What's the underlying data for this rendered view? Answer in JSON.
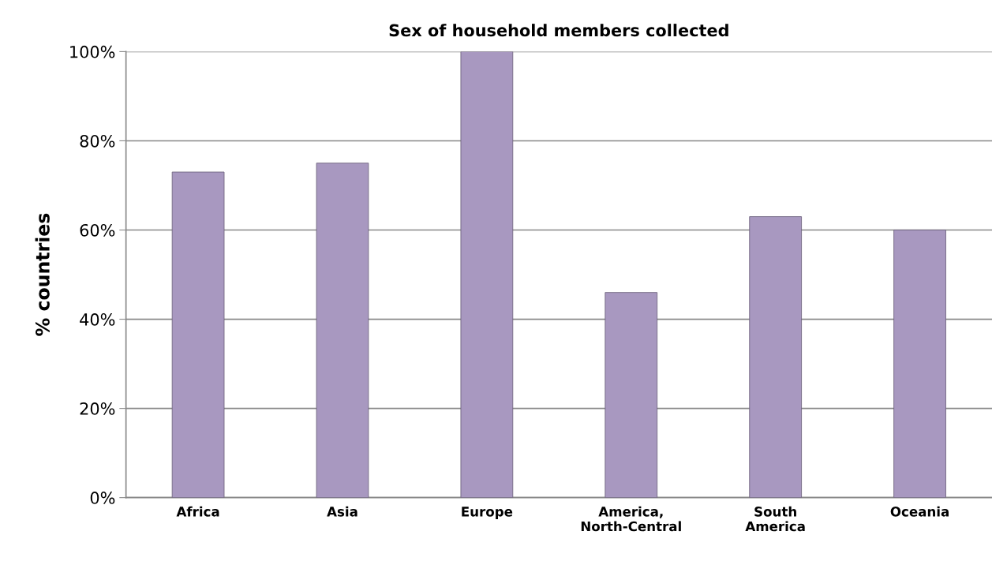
{
  "chart_data": {
    "type": "bar",
    "title": "Sex of household members collected",
    "ylabel": "% countries",
    "categories": [
      "Africa",
      "Asia",
      "Europe",
      "America,\nNorth-Central",
      "South\nAmerica",
      "Oceania"
    ],
    "values": [
      73,
      75,
      100,
      46,
      63,
      60
    ],
    "color": "#a898c0",
    "ylim": [
      0,
      100
    ],
    "yticks": [
      {
        "value": 0,
        "label": "0%"
      },
      {
        "value": 20,
        "label": "20%"
      },
      {
        "value": 40,
        "label": "40%"
      },
      {
        "value": 60,
        "label": "60%"
      },
      {
        "value": 80,
        "label": "80%"
      },
      {
        "value": 100,
        "label": "100%"
      }
    ],
    "grid": "y"
  }
}
